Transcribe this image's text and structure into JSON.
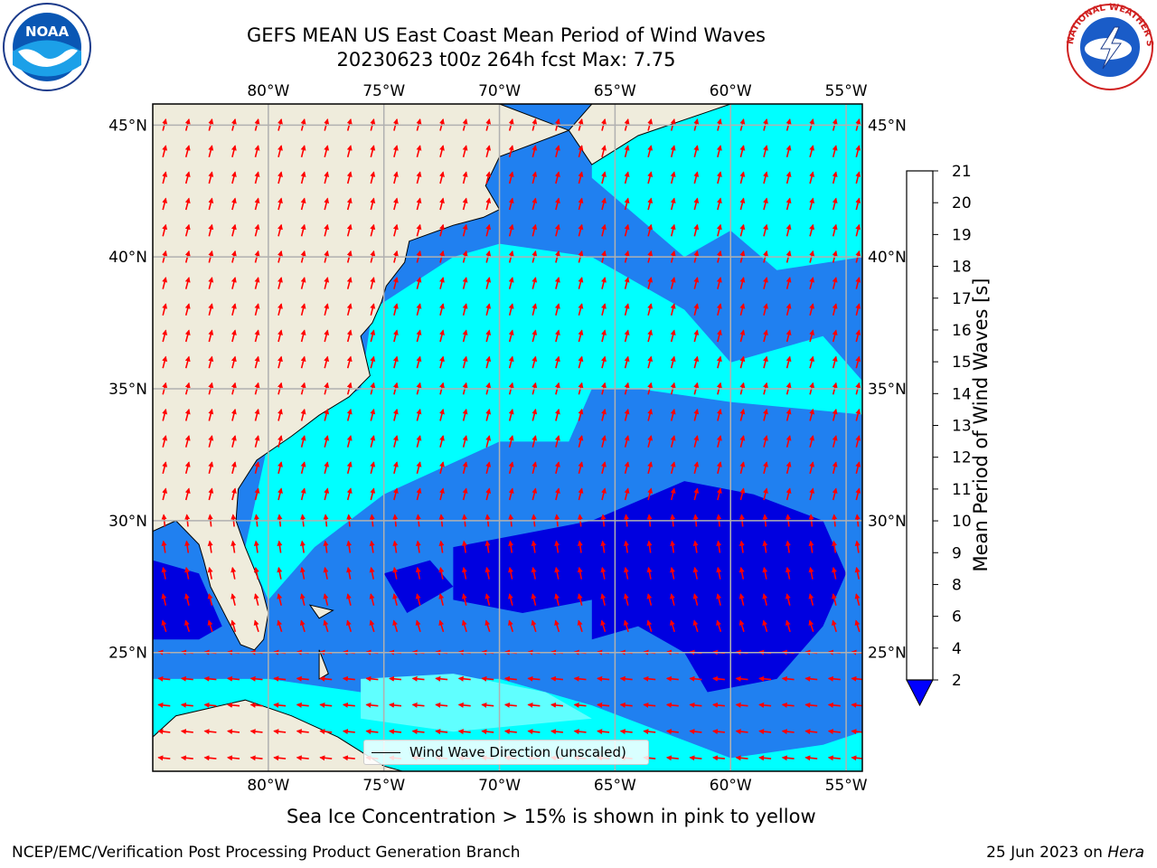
{
  "title": {
    "line1": "GEFS MEAN US East Coast Mean Period of Wind Waves",
    "line2": "20230623 t00z 264h fcst   Max: 7.75"
  },
  "map": {
    "lon_range": [
      -85,
      -54.3
    ],
    "lat_range": [
      20.5,
      45.8
    ],
    "lon_ticks": [
      "80°W",
      "75°W",
      "70°W",
      "65°W",
      "60°W",
      "55°W"
    ],
    "lat_ticks": [
      "45°N",
      "40°N",
      "35°N",
      "30°N",
      "25°N"
    ],
    "colors": {
      "land": "#efecdc",
      "level_2_4": "#2080f0",
      "level_4_6": "#00ffff",
      "level_below_2": "#0000e0",
      "level_6_8": "#60ffff",
      "arrow": "#ff0000",
      "grid": "#b0b0b0"
    },
    "legend_label": "Wind Wave Direction (unscaled)"
  },
  "colorbar": {
    "label": "Mean Period of Wind Waves [s]",
    "ticks": [
      "2",
      "4",
      "6",
      "8",
      "9",
      "10",
      "11",
      "12",
      "13",
      "14",
      "15",
      "16",
      "17",
      "18",
      "19",
      "20",
      "21"
    ],
    "colors": [
      "#0080ff",
      "#00ffff",
      "#50ffff",
      "#a0ffff",
      "#50ff80",
      "#00e000",
      "#50e000",
      "#a0e000",
      "#d0ff00",
      "#e0ff00",
      "#ffff00",
      "#ffe000",
      "#ffb000",
      "#ff8000",
      "#ff5000",
      "#ff2000",
      "#ff0000"
    ],
    "extend_color": "#0000ff"
  },
  "note": "Sea Ice Concentration > 15% is shown in pink to yellow",
  "footer": {
    "left": "NCEP/EMC/Verification Post Processing Product Generation Branch",
    "right_date": "25 Jun 2023 on",
    "right_host": "Hera"
  },
  "logos": {
    "noaa_text": "NOAA",
    "nws_text": "NATIONAL WEATHER SERVICE"
  }
}
